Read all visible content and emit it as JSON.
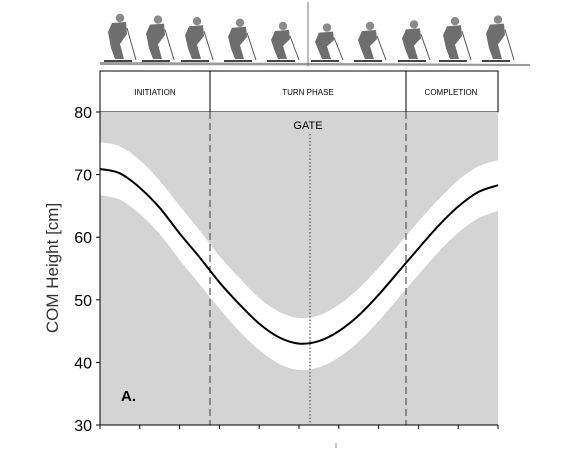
{
  "chart_data": {
    "type": "area",
    "title": "",
    "xlabel": "",
    "ylabel": "COM Height [cm]",
    "ylim": [
      30,
      80
    ],
    "yticks": [
      30,
      40,
      50,
      60,
      70,
      80
    ],
    "grid": false,
    "legend": "none",
    "panel_label": "A.",
    "phases": [
      "INITIATION",
      "TURN PHASE",
      "COMPLETION"
    ],
    "gate_label": "GATE",
    "series": [
      {
        "x": [
          0,
          0.05,
          0.1,
          0.15,
          0.2,
          0.25,
          0.3,
          0.35,
          0.4,
          0.45,
          0.5,
          0.55,
          0.6,
          0.65,
          0.7,
          0.75,
          0.8,
          0.85,
          0.9,
          0.95,
          1.0
        ],
        "mean": [
          70.9,
          70.2,
          67.9,
          64.7,
          60.6,
          56.8,
          52.8,
          49.3,
          46.2,
          44.0,
          43.0,
          43.4,
          45.0,
          47.5,
          50.8,
          54.5,
          58.2,
          61.8,
          64.9,
          67.2,
          68.3
        ],
        "upper": [
          75.2,
          74.5,
          72.3,
          69.0,
          65.0,
          61.1,
          57.0,
          53.5,
          50.3,
          48.1,
          47.1,
          47.5,
          49.2,
          51.8,
          55.1,
          58.8,
          62.5,
          66.0,
          69.1,
          71.3,
          72.3
        ],
        "lower": [
          66.7,
          66.0,
          63.7,
          60.5,
          56.4,
          52.5,
          48.6,
          45.0,
          42.0,
          39.8,
          38.8,
          39.2,
          40.8,
          43.3,
          46.6,
          50.3,
          54.0,
          57.6,
          60.7,
          63.0,
          64.2
        ]
      }
    ],
    "colors": {
      "background": "#d4d4d4",
      "band": "#ffffff",
      "line": "#000000",
      "dividers": "#555555"
    }
  }
}
